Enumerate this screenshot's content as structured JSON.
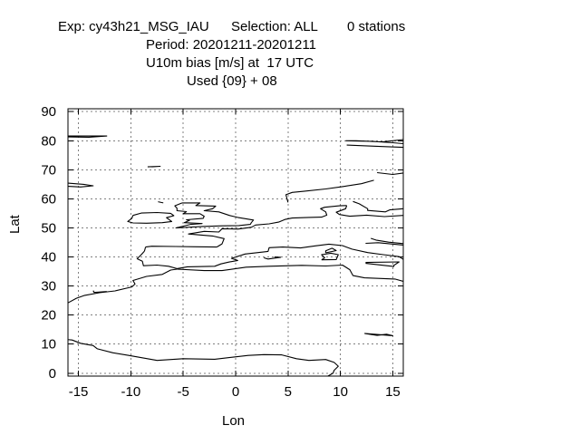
{
  "title": {
    "exp": "Exp: cy43h21_MSG_IAU",
    "selection": "Selection: ALL",
    "stations": "0 stations",
    "period": "Period: 20201211-20201211",
    "variable": "U10m bias [m/s] at  17 UTC",
    "used": "Used {09} + 08"
  },
  "axes": {
    "xlabel": "Lon",
    "ylabel": "Lat",
    "xlim": [
      -16,
      16
    ],
    "ylim": [
      -1,
      91
    ],
    "xticks": [
      -15,
      -10,
      -5,
      0,
      5,
      10,
      15
    ],
    "yticks": [
      0,
      10,
      20,
      30,
      40,
      50,
      60,
      70,
      80,
      90
    ],
    "grid": true
  },
  "colors": {
    "coast": "#000000",
    "grid": "#808080",
    "frame": "#000000"
  },
  "coastlines": [
    [
      [
        -16,
        81.3
      ],
      [
        -14,
        81.2
      ],
      [
        -12.3,
        81.6
      ],
      [
        -16,
        81.6
      ]
    ],
    [
      [
        -16,
        65.4
      ],
      [
        -14.5,
        65.0
      ],
      [
        -13.6,
        64.5
      ],
      [
        -14.8,
        64.1
      ],
      [
        -16,
        64.3
      ]
    ],
    [
      [
        -9.8,
        54.3
      ],
      [
        -9.0,
        55.1
      ],
      [
        -7.5,
        55.3
      ],
      [
        -6.2,
        55.0
      ],
      [
        -5.9,
        54.2
      ],
      [
        -6.6,
        53.5
      ],
      [
        -6.1,
        52.2
      ],
      [
        -7.0,
        51.8
      ],
      [
        -8.5,
        51.6
      ],
      [
        -9.8,
        51.7
      ],
      [
        -10.3,
        52.2
      ],
      [
        -9.9,
        53.3
      ],
      [
        -9.8,
        54.3
      ]
    ],
    [
      [
        -5.1,
        58.6
      ],
      [
        -3.4,
        58.6
      ],
      [
        -3.8,
        57.7
      ],
      [
        -1.9,
        57.5
      ],
      [
        -2.2,
        56.6
      ],
      [
        -3.0,
        55.9
      ],
      [
        -1.6,
        55.5
      ],
      [
        -0.6,
        54.3
      ],
      [
        0.2,
        53.6
      ],
      [
        1.7,
        52.7
      ],
      [
        1.5,
        51.8
      ],
      [
        1.4,
        51.2
      ],
      [
        0.3,
        50.8
      ],
      [
        -1.3,
        50.7
      ],
      [
        -3.2,
        50.5
      ],
      [
        -5.7,
        50.0
      ],
      [
        -4.3,
        51.2
      ],
      [
        -3.2,
        51.5
      ],
      [
        -4.9,
        51.8
      ],
      [
        -4.4,
        52.6
      ],
      [
        -4.7,
        52.8
      ],
      [
        -3.1,
        53.3
      ],
      [
        -3.0,
        54.0
      ],
      [
        -3.4,
        54.9
      ],
      [
        -5.0,
        54.9
      ],
      [
        -4.7,
        55.6
      ],
      [
        -5.6,
        55.9
      ],
      [
        -5.6,
        56.8
      ],
      [
        -5.8,
        57.6
      ],
      [
        -5.1,
        58.6
      ]
    ],
    [
      [
        -7.4,
        59.0
      ],
      [
        -6.9,
        58.6
      ]
    ],
    [
      [
        -8.0,
        71.0
      ],
      [
        -7.2,
        71.2
      ],
      [
        -8.4,
        71.0
      ]
    ],
    [
      [
        -8.6,
        43.4
      ],
      [
        -8.0,
        43.7
      ],
      [
        -5.7,
        43.6
      ],
      [
        -3.8,
        43.5
      ],
      [
        -1.8,
        43.4
      ]
    ],
    [
      [
        -8.7,
        42.0
      ],
      [
        -9.0,
        40.8
      ],
      [
        -9.4,
        39.4
      ],
      [
        -8.9,
        38.5
      ],
      [
        -8.8,
        37.0
      ],
      [
        -7.5,
        37.2
      ],
      [
        -6.4,
        36.8
      ],
      [
        -5.6,
        36.0
      ],
      [
        -4.6,
        36.6
      ],
      [
        -3.0,
        36.7
      ],
      [
        -2.0,
        36.8
      ],
      [
        -1.4,
        37.6
      ],
      [
        -0.7,
        38.2
      ],
      [
        0.2,
        38.8
      ],
      [
        -0.4,
        39.5
      ],
      [
        0.9,
        41.0
      ],
      [
        3.1,
        41.9
      ],
      [
        3.2,
        43.2
      ],
      [
        4.5,
        43.4
      ],
      [
        6.2,
        43.1
      ],
      [
        7.6,
        43.8
      ],
      [
        8.9,
        44.4
      ],
      [
        10.2,
        43.9
      ],
      [
        11.1,
        42.7
      ],
      [
        12.6,
        41.5
      ],
      [
        14.1,
        40.8
      ],
      [
        15.6,
        40.1
      ],
      [
        16,
        39.2
      ]
    ],
    [
      [
        -8.7,
        42.0
      ],
      [
        -8.6,
        43.4
      ]
    ],
    [
      [
        -1.8,
        43.4
      ],
      [
        -1.3,
        44.5
      ],
      [
        -1.1,
        46.3
      ],
      [
        -2.2,
        47.2
      ],
      [
        -4.5,
        47.9
      ],
      [
        -3.0,
        48.8
      ],
      [
        -1.6,
        48.6
      ],
      [
        -1.3,
        49.7
      ],
      [
        0.2,
        49.6
      ],
      [
        1.5,
        50.2
      ],
      [
        1.9,
        51.0
      ],
      [
        3.2,
        51.4
      ],
      [
        4.1,
        52.0
      ],
      [
        4.7,
        52.9
      ],
      [
        5.4,
        53.4
      ],
      [
        7.0,
        53.6
      ],
      [
        8.2,
        53.7
      ],
      [
        8.7,
        54.4
      ],
      [
        8.6,
        55.5
      ],
      [
        8.1,
        56.6
      ],
      [
        8.5,
        57.1
      ],
      [
        9.9,
        57.6
      ],
      [
        10.6,
        57.7
      ]
    ],
    [
      [
        10.6,
        57.7
      ],
      [
        10.5,
        56.6
      ],
      [
        9.6,
        55.4
      ],
      [
        9.9,
        54.6
      ],
      [
        10.9,
        54.0
      ],
      [
        12.5,
        54.4
      ],
      [
        14.2,
        53.9
      ],
      [
        16,
        54.3
      ]
    ],
    [
      [
        5.0,
        58.8
      ],
      [
        4.9,
        60.0
      ],
      [
        4.8,
        61.4
      ],
      [
        5.4,
        62.2
      ],
      [
        6.5,
        62.6
      ],
      [
        8.6,
        63.4
      ],
      [
        10.2,
        64.2
      ],
      [
        12.0,
        65.2
      ],
      [
        13.2,
        66.4
      ]
    ],
    [
      [
        11.2,
        59.1
      ],
      [
        11.8,
        58.3
      ],
      [
        12.6,
        56.6
      ],
      [
        12.6,
        56.0
      ],
      [
        14.3,
        55.5
      ],
      [
        14.7,
        56.2
      ],
      [
        16,
        56.6
      ]
    ],
    [
      [
        -5.6,
        35.8
      ],
      [
        -3.0,
        35.3
      ],
      [
        -1.3,
        35.3
      ],
      [
        1.0,
        36.5
      ],
      [
        3.2,
        36.8
      ],
      [
        6.3,
        37.1
      ],
      [
        8.6,
        36.9
      ],
      [
        10.2,
        37.2
      ],
      [
        10.9,
        35.6
      ],
      [
        11.2,
        33.6
      ],
      [
        12.3,
        32.8
      ],
      [
        15.2,
        32.4
      ],
      [
        16,
        31.6
      ]
    ],
    [
      [
        -16,
        24.2
      ],
      [
        -15.2,
        25.8
      ],
      [
        -14.4,
        26.8
      ],
      [
        -13.0,
        27.7
      ],
      [
        -11.5,
        28.3
      ],
      [
        -9.9,
        29.7
      ],
      [
        -9.6,
        30.7
      ],
      [
        -9.8,
        31.9
      ],
      [
        -8.5,
        33.3
      ],
      [
        -7.0,
        34.0
      ],
      [
        -6.2,
        35.5
      ],
      [
        -5.6,
        35.8
      ]
    ],
    [
      [
        -17,
        11.9
      ],
      [
        -15.6,
        11.4
      ],
      [
        -14.8,
        10.3
      ],
      [
        -13.6,
        9.5
      ],
      [
        -13.2,
        8.4
      ],
      [
        -11.7,
        7.0
      ],
      [
        -10.2,
        6.1
      ],
      [
        -7.5,
        4.4
      ],
      [
        -5.0,
        5.0
      ],
      [
        -2.0,
        4.8
      ],
      [
        1.2,
        6.1
      ],
      [
        2.7,
        6.4
      ],
      [
        4.4,
        6.3
      ],
      [
        5.8,
        5.0
      ],
      [
        7.0,
        4.4
      ],
      [
        8.6,
        4.7
      ],
      [
        9.4,
        3.7
      ],
      [
        9.8,
        2.4
      ],
      [
        9.4,
        1.0
      ],
      [
        9.3,
        0.0
      ],
      [
        8.8,
        -1.0
      ]
    ],
    [
      [
        -12.3,
        28.1
      ],
      [
        -13.5,
        27.8
      ],
      [
        -13.6,
        28.4
      ]
    ],
    [
      [
        3.7,
        40.0
      ],
      [
        4.3,
        39.9
      ],
      [
        3.1,
        39.3
      ],
      [
        2.7,
        39.7
      ]
    ],
    [
      [
        8.2,
        39.0
      ],
      [
        9.6,
        39.1
      ],
      [
        9.8,
        40.8
      ],
      [
        9.1,
        41.3
      ],
      [
        8.2,
        40.8
      ],
      [
        8.5,
        39.7
      ],
      [
        8.2,
        39.0
      ]
    ],
    [
      [
        8.6,
        41.4
      ],
      [
        9.6,
        42.2
      ],
      [
        9.2,
        43.0
      ],
      [
        8.6,
        42.1
      ],
      [
        8.6,
        41.4
      ]
    ],
    [
      [
        12.4,
        38.1
      ],
      [
        15.6,
        38.3
      ],
      [
        15.1,
        37.1
      ],
      [
        15.1,
        36.7
      ],
      [
        12.4,
        37.8
      ]
    ],
    [
      [
        10.5,
        80.0
      ],
      [
        13.0,
        79.8
      ],
      [
        15.0,
        79.3
      ],
      [
        16,
        79.0
      ],
      [
        16,
        80.4
      ],
      [
        14.0,
        79.6
      ],
      [
        11.5,
        80.0
      ],
      [
        10.5,
        80.0
      ]
    ],
    [
      [
        10.6,
        78.5
      ],
      [
        14.0,
        78.0
      ],
      [
        16,
        77.7
      ]
    ],
    [
      [
        13.5,
        69.0
      ],
      [
        15.0,
        68.4
      ],
      [
        16,
        68.9
      ]
    ],
    [
      [
        12.9,
        46.4
      ],
      [
        13.4,
        45.8
      ],
      [
        14.6,
        45.1
      ],
      [
        16,
        44.6
      ]
    ],
    [
      [
        12.4,
        44.7
      ],
      [
        13.6,
        44.9
      ],
      [
        16,
        44.1
      ]
    ],
    [
      [
        12.3,
        13.7
      ],
      [
        13.5,
        13.0
      ],
      [
        14.4,
        13.4
      ],
      [
        15.0,
        12.9
      ],
      [
        12.3,
        13.7
      ]
    ]
  ]
}
